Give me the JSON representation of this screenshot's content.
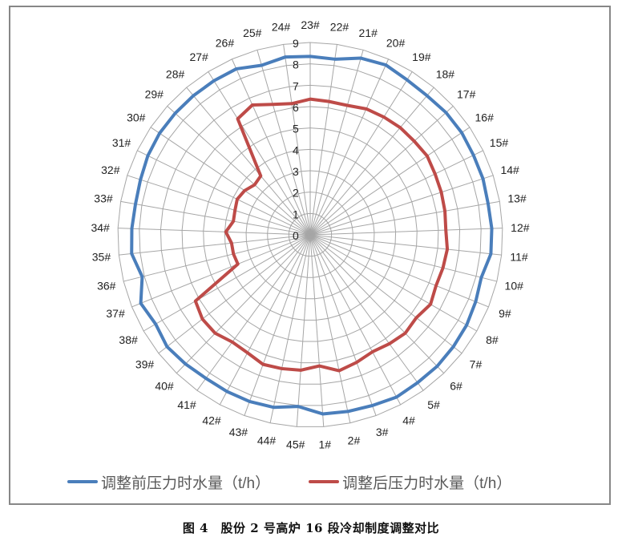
{
  "chart_data": {
    "type": "radar",
    "title": "",
    "categories": [
      "1#",
      "2#",
      "3#",
      "4#",
      "5#",
      "6#",
      "7#",
      "8#",
      "9#",
      "10#",
      "11#",
      "12#",
      "13#",
      "14#",
      "15#",
      "16#",
      "17#",
      "18#",
      "19#",
      "20#",
      "21#",
      "22#",
      "23#",
      "24#",
      "25#",
      "26#",
      "27#",
      "28#",
      "29#",
      "30#",
      "31#",
      "32#",
      "33#",
      "34#",
      "35#",
      "36#",
      "37#",
      "38#",
      "39#",
      "40#",
      "41#",
      "42#",
      "43#",
      "44#",
      "45#"
    ],
    "radial_ticks": [
      "0",
      "1",
      "2",
      "3",
      "4",
      "5",
      "6",
      "7",
      "8",
      "9"
    ],
    "rlim": [
      0,
      9
    ],
    "top_category": "23#",
    "direction": "clockwise, decreasing index",
    "grid": true,
    "legend_position": "bottom",
    "series": [
      {
        "name": "调整前压力时水量（t/h）",
        "color": "#4a7ebb",
        "values": [
          8.4,
          8.45,
          8.5,
          8.6,
          8.55,
          8.55,
          8.5,
          8.45,
          8.35,
          8.25,
          8.5,
          8.5,
          8.45,
          8.5,
          8.5,
          8.55,
          8.55,
          8.5,
          8.55,
          8.7,
          8.6,
          8.3,
          8.35,
          8.4,
          8.25,
          8.5,
          8.5,
          8.5,
          8.5,
          8.5,
          8.45,
          8.35,
          8.3,
          8.35,
          8.4,
          8.1,
          8.55,
          8.35,
          8.5,
          8.4,
          8.3,
          8.3,
          8.3,
          8.25,
          8.05
        ]
      },
      {
        "name": "调整后压力时水量（t/h）",
        "color": "#be4b48",
        "values": [
          6.15,
          6.5,
          6.35,
          6.2,
          6.3,
          6.4,
          6.3,
          6.5,
          6.35,
          6.4,
          6.45,
          6.35,
          6.4,
          6.45,
          6.5,
          6.6,
          6.55,
          6.55,
          6.5,
          6.45,
          6.3,
          6.3,
          6.35,
          6.2,
          6.35,
          6.65,
          6.4,
          3.6,
          3.5,
          3.7,
          3.8,
          3.7,
          3.65,
          3.95,
          3.7,
          3.7,
          3.65,
          6.2,
          6.4,
          6.4,
          6.2,
          6.25,
          6.45,
          6.4,
          6.35
        ]
      }
    ]
  },
  "legend": {
    "items": [
      {
        "label": "调整前压力时水量（t/h）",
        "color": "#4a7ebb"
      },
      {
        "label": "调整后压力时水量（t/h）",
        "color": "#be4b48"
      }
    ]
  },
  "caption": "图 4　股份 2 号高炉 16 段冷却制度调整对比"
}
